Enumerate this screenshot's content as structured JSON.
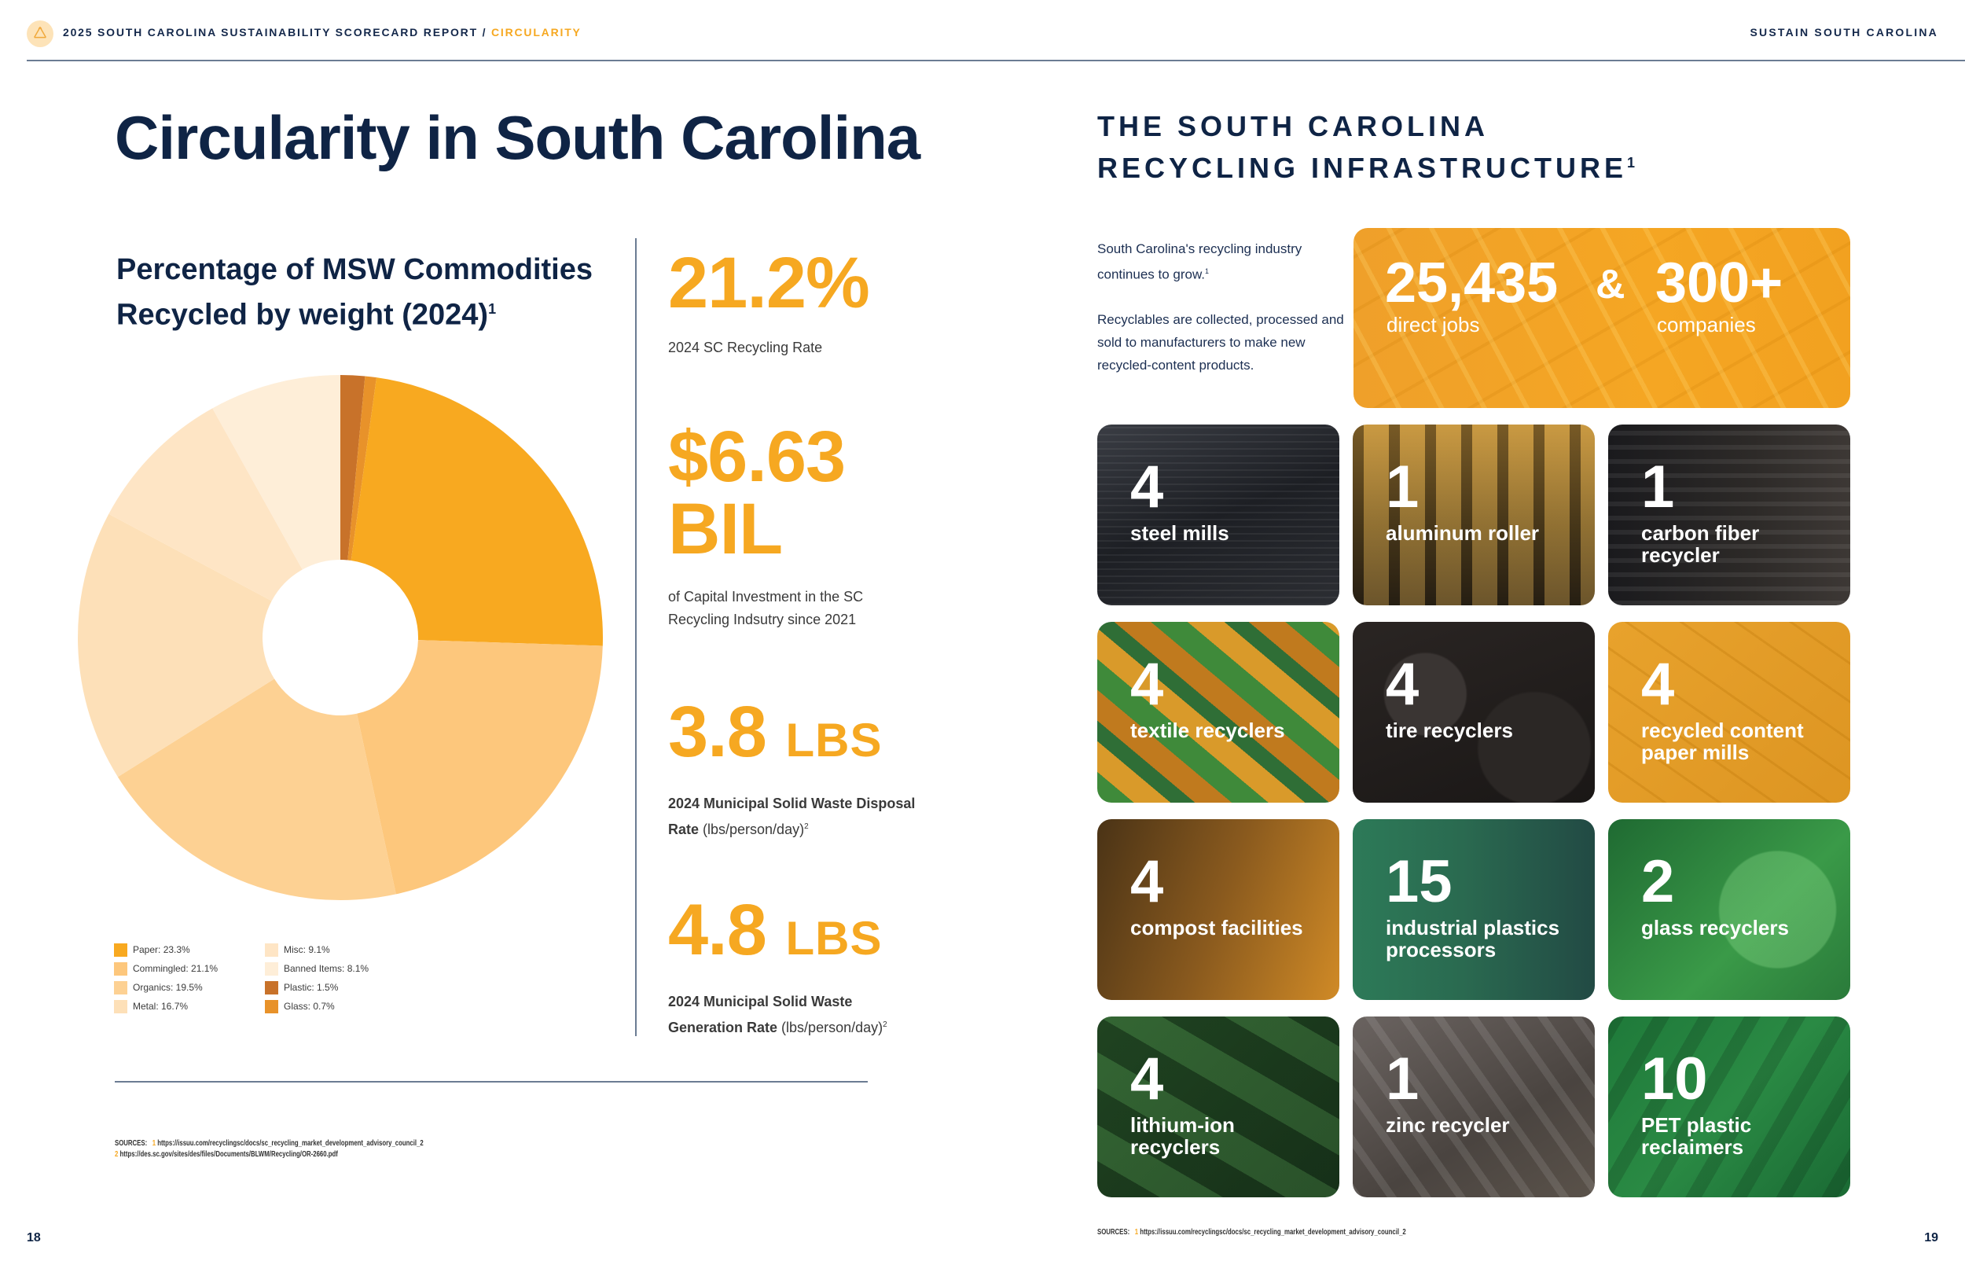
{
  "header": {
    "icon": "recycle-icon",
    "title_main": "2025 SOUTH CAROLINA SUSTAINABILITY SCORECARD REPORT / ",
    "title_accent": "CIRCULARITY",
    "right_label": "SUSTAIN SOUTH CAROLINA"
  },
  "left_page": {
    "title": "Circularity in South Carolina",
    "chart_title_line1": "Percentage of MSW Commodities",
    "chart_title_line2": "Recycled by weight (2024)",
    "chart_title_sup": "1",
    "stats": [
      {
        "value": "21.2%",
        "unit": "",
        "desc_plain": "2024 SC Recycling Rate"
      },
      {
        "value": "$6.63",
        "value_line2": "BIL",
        "desc_plain": "of Capital Investment in the SC Recycling Indsutry since 2021"
      },
      {
        "value": "3.8",
        "unit": "LBS",
        "desc_bold": "2024 Municipal Solid Waste Disposal Rate",
        "desc_plain": " (lbs/person/day)",
        "sup": "2"
      },
      {
        "value": "4.8",
        "unit": "LBS",
        "desc_bold": "2024 Municipal Solid Waste Generation Rate",
        "desc_plain": " (lbs/person/day)",
        "sup": "2"
      }
    ],
    "sources_label": "SOURCES:",
    "sources": [
      {
        "n": "1",
        "url": "https://issuu.com/recyclingsc/docs/sc_recycling_market_development_advisory_council_2"
      },
      {
        "n": "2",
        "url": "https://des.sc.gov/sites/des/files/Documents/BLWM/Recycling/OR-2660.pdf"
      }
    ],
    "page_number": "18"
  },
  "chart_data": {
    "type": "pie",
    "subtype": "donut",
    "title": "Percentage of MSW Commodities Recycled by weight (2024)",
    "start_angle": "12 o'clock, clockwise",
    "categories": [
      "Plastic",
      "Glass",
      "Paper",
      "Commingled",
      "Organics",
      "Metal",
      "Misc",
      "Banned Items"
    ],
    "values": [
      1.5,
      0.7,
      23.3,
      21.1,
      19.5,
      16.7,
      9.1,
      8.1
    ],
    "colors": [
      "#c8722a",
      "#e8922a",
      "#f8a920",
      "#fdc77c",
      "#fdd193",
      "#fde0b8",
      "#fee5c5",
      "#feeed8"
    ],
    "legend": [
      {
        "label": "Paper: 23.3%",
        "color": "#f8a920"
      },
      {
        "label": "Misc: 9.1%",
        "color": "#fee5c5"
      },
      {
        "label": "Commingled: 21.1%",
        "color": "#fdc77c"
      },
      {
        "label": "Banned Items: 8.1%",
        "color": "#feeed8"
      },
      {
        "label": "Organics: 19.5%",
        "color": "#fdd193"
      },
      {
        "label": "Plastic: 1.5%",
        "color": "#c8722a"
      },
      {
        "label": "Metal: 16.7%",
        "color": "#fde0b8"
      },
      {
        "label": "Glass: 0.7%",
        "color": "#e8922a"
      }
    ],
    "legend_position": "bottom-left"
  },
  "right_page": {
    "title_line1": "THE SOUTH CAROLINA",
    "title_line2": "RECYCLING INFRASTRUCTURE",
    "title_sup": "1",
    "intro_p1": "South Carolina's recycling industry continues to grow.",
    "intro_p1_sup": "1",
    "intro_p2": "Recyclables are collected, processed and sold to manufacturers to make new recycled-content products.",
    "hero": {
      "jobs_value": "25,435",
      "amp": "&",
      "companies_value": "300+",
      "jobs_label": "direct jobs",
      "companies_label": "companies"
    },
    "tiles": [
      {
        "num": "4",
        "label": "steel mills"
      },
      {
        "num": "1",
        "label": "aluminum roller"
      },
      {
        "num": "1",
        "label": "carbon fiber recycler"
      },
      {
        "num": "4",
        "label": "textile recyclers"
      },
      {
        "num": "4",
        "label": "tire recyclers"
      },
      {
        "num": "4",
        "label": "recycled content paper mills"
      },
      {
        "num": "4",
        "label": "compost facilities"
      },
      {
        "num": "15",
        "label": "industrial plastics processors"
      },
      {
        "num": "2",
        "label": "glass recyclers"
      },
      {
        "num": "4",
        "label": "lithium-ion recyclers"
      },
      {
        "num": "1",
        "label": "zinc recycler"
      },
      {
        "num": "10",
        "label": "PET plastic reclaimers"
      }
    ],
    "sources_label": "SOURCES:",
    "sources": [
      {
        "n": "1",
        "url": "https://issuu.com/recyclingsc/docs/sc_recycling_market_development_advisory_council_2"
      }
    ],
    "page_number": "19"
  },
  "colors": {
    "navy": "#0f2445",
    "accent_orange": "#f6a821",
    "rule_gray": "#6b7c93"
  }
}
